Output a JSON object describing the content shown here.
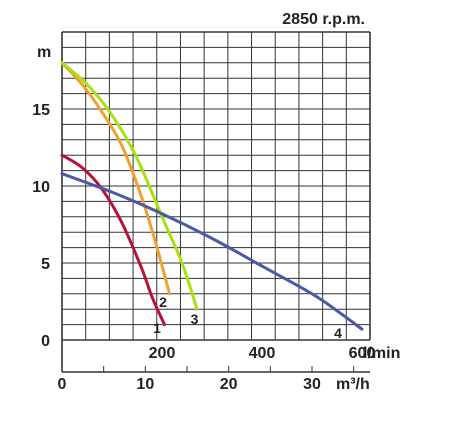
{
  "chart_data": {
    "type": "line",
    "title": "2850 r.p.m.",
    "ylabel": "m",
    "x_unit_top": "l/min",
    "x_unit_bottom": "m³/h",
    "xlim": [
      0,
      616
    ],
    "ylim": [
      0,
      20
    ],
    "grid": true,
    "y_ticks": [
      "0",
      "5",
      "10",
      "15"
    ],
    "x_ticks_top": [
      {
        "value": 200,
        "label": "200"
      },
      {
        "value": 400,
        "label": "400"
      },
      {
        "value": 600,
        "label": "600"
      }
    ],
    "x_ticks_bottom": [
      {
        "value": 0,
        "label": "0"
      },
      {
        "value": 10,
        "label": "10"
      },
      {
        "value": 20,
        "label": "20"
      },
      {
        "value": 30,
        "label": "30"
      }
    ],
    "series": [
      {
        "name": "1",
        "color": "#b5123a",
        "x": [
          0,
          40,
          80,
          120,
          160,
          180,
          205
        ],
        "y": [
          12.0,
          11.2,
          9.8,
          7.6,
          4.6,
          2.8,
          1.0
        ]
      },
      {
        "name": "2",
        "color": "#f0a030",
        "x": [
          0,
          40,
          80,
          120,
          160,
          190,
          215
        ],
        "y": [
          18.0,
          16.6,
          14.8,
          12.6,
          9.2,
          6.0,
          3.0
        ]
      },
      {
        "name": "3",
        "color": "#a8e010",
        "x": [
          0,
          50,
          100,
          150,
          200,
          240,
          270
        ],
        "y": [
          18.0,
          16.6,
          14.6,
          11.8,
          8.0,
          5.0,
          2.0
        ]
      },
      {
        "name": "4",
        "color": "#4a5aa8",
        "x": [
          0,
          100,
          200,
          300,
          400,
          500,
          550,
          600
        ],
        "y": [
          10.8,
          9.6,
          8.2,
          6.6,
          4.8,
          3.0,
          1.9,
          0.7
        ]
      }
    ],
    "curve_labels": [
      {
        "text": "1",
        "x": 190,
        "y": 0.7
      },
      {
        "text": "2",
        "x": 202,
        "y": 2.4
      },
      {
        "text": "3",
        "x": 265,
        "y": 1.3
      },
      {
        "text": "4",
        "x": 552,
        "y": 0.4
      }
    ]
  }
}
